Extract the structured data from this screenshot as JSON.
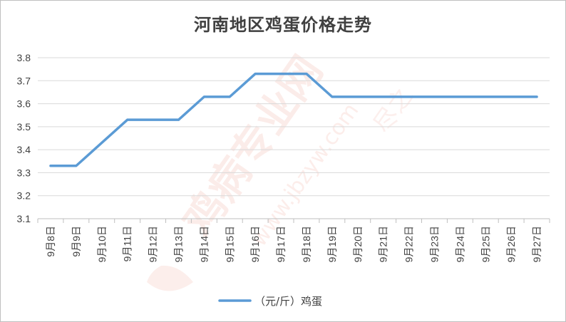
{
  "watermark": {
    "text_main": "鸡病专业网",
    "text_url": "www.jbzyw.com",
    "text_sign": "尽之",
    "color": "#e8705a"
  },
  "chart_data": {
    "type": "line",
    "title": "河南地区鸡蛋价格走势",
    "categories": [
      "9月8日",
      "9月9日",
      "9月10日",
      "9月11日",
      "9月12日",
      "9月13日",
      "9月14日",
      "9月15日",
      "9月16日",
      "9月17日",
      "9月18日",
      "9月19日",
      "9月20日",
      "9月21日",
      "9月22日",
      "9月23日",
      "9月24日",
      "9月25日",
      "9月26日",
      "9月27日"
    ],
    "series": [
      {
        "name": "（元/斤）鸡蛋",
        "color": "#5b9bd5",
        "values": [
          3.33,
          3.33,
          3.43,
          3.53,
          3.53,
          3.53,
          3.63,
          3.63,
          3.73,
          3.73,
          3.73,
          3.63,
          3.63,
          3.63,
          3.63,
          3.63,
          3.63,
          3.63,
          3.63,
          3.63
        ]
      }
    ],
    "ylim": [
      3.1,
      3.8
    ],
    "yticks": [
      3.1,
      3.2,
      3.3,
      3.4,
      3.5,
      3.6,
      3.7,
      3.8
    ],
    "grid": true,
    "legend": "bottom",
    "xlabel": "",
    "ylabel": ""
  }
}
